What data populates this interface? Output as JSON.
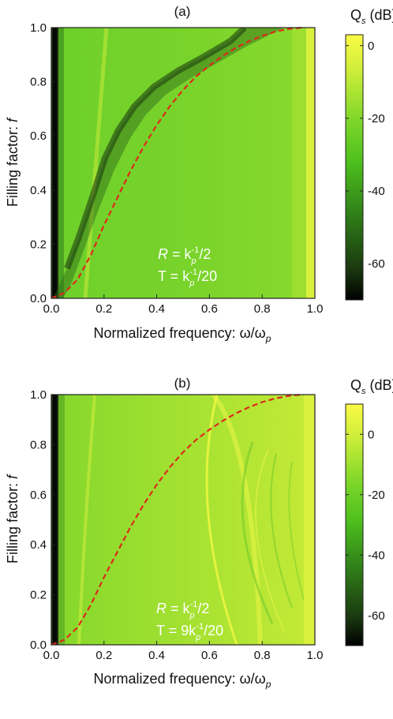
{
  "chart_data": [
    {
      "type": "heatmap",
      "panel_label": "(a)",
      "xlabel": "Normalized frequency: ω/ω",
      "xlabel_sub": "p",
      "ylabel": "Filling factor: ",
      "ylabel_italic": "f",
      "xlim": [
        0,
        1
      ],
      "ylim": [
        0,
        1
      ],
      "xticks": [
        "0.0",
        "0.2",
        "0.4",
        "0.6",
        "0.8",
        "1.0"
      ],
      "yticks": [
        "0.0",
        "0.2",
        "0.4",
        "0.6",
        "0.8",
        "1.0"
      ],
      "colorbar": {
        "label": "Q",
        "label_sub": "s",
        "label_unit": " (dB)",
        "range": [
          -70,
          3
        ],
        "ticks": [
          "0",
          "-20",
          "-40",
          "-60"
        ],
        "tick_values": [
          0,
          -20,
          -40,
          -60
        ]
      },
      "annotation": {
        "line1": {
          "pre": "R",
          "eq": " = k",
          "sub": "p",
          "sup": "-1",
          "post": "/2"
        },
        "line2": {
          "pre": "T",
          "eq": " = ",
          "coef": "",
          "k": "k",
          "sub": "p",
          "sup": "-1",
          "post": "/20"
        }
      },
      "dashed_curve": {
        "color": "#dd2a1a",
        "points": [
          [
            0.0,
            0.0
          ],
          [
            0.05,
            0.02
          ],
          [
            0.1,
            0.07
          ],
          [
            0.15,
            0.16
          ],
          [
            0.2,
            0.27
          ],
          [
            0.25,
            0.37
          ],
          [
            0.3,
            0.47
          ],
          [
            0.35,
            0.56
          ],
          [
            0.4,
            0.64
          ],
          [
            0.45,
            0.71
          ],
          [
            0.5,
            0.77
          ],
          [
            0.55,
            0.82
          ],
          [
            0.6,
            0.86
          ],
          [
            0.65,
            0.895
          ],
          [
            0.7,
            0.925
          ],
          [
            0.75,
            0.95
          ],
          [
            0.8,
            0.97
          ],
          [
            0.85,
            0.985
          ],
          [
            0.9,
            0.995
          ],
          [
            0.95,
            1.0
          ]
        ]
      }
    },
    {
      "type": "heatmap",
      "panel_label": "(b)",
      "xlabel": "Normalized frequency: ω/ω",
      "xlabel_sub": "p",
      "ylabel": "Filling factor: ",
      "ylabel_italic": "f",
      "xlim": [
        0,
        1
      ],
      "ylim": [
        0,
        1
      ],
      "xticks": [
        "0.0",
        "0.2",
        "0.4",
        "0.6",
        "0.8",
        "1.0"
      ],
      "yticks": [
        "0.0",
        "0.2",
        "0.4",
        "0.6",
        "0.8",
        "1.0"
      ],
      "colorbar": {
        "label": "Q",
        "label_sub": "s",
        "label_unit": " (dB)",
        "range": [
          -70,
          10
        ],
        "ticks": [
          "0",
          "-20",
          "-40",
          "-60"
        ],
        "tick_values": [
          0,
          -20,
          -40,
          -60
        ]
      },
      "annotation": {
        "line1": {
          "pre": "R",
          "eq": " = k",
          "sub": "p",
          "sup": "-1",
          "post": "/2"
        },
        "line2": {
          "pre": "T",
          "eq": " = ",
          "coef": "9",
          "k": "k",
          "sub": "p",
          "sup": "-1",
          "post": "/20"
        }
      },
      "dashed_curve": {
        "color": "#dd2a1a",
        "points": [
          [
            0.0,
            0.0
          ],
          [
            0.05,
            0.02
          ],
          [
            0.1,
            0.07
          ],
          [
            0.15,
            0.16
          ],
          [
            0.2,
            0.27
          ],
          [
            0.25,
            0.37
          ],
          [
            0.3,
            0.47
          ],
          [
            0.35,
            0.56
          ],
          [
            0.4,
            0.64
          ],
          [
            0.45,
            0.71
          ],
          [
            0.5,
            0.77
          ],
          [
            0.55,
            0.82
          ],
          [
            0.6,
            0.86
          ],
          [
            0.65,
            0.895
          ],
          [
            0.7,
            0.925
          ],
          [
            0.75,
            0.95
          ],
          [
            0.8,
            0.97
          ],
          [
            0.85,
            0.985
          ],
          [
            0.9,
            0.995
          ],
          [
            0.95,
            1.0
          ]
        ]
      }
    }
  ],
  "colors": {
    "colormap": [
      "#000000",
      "#1b3a10",
      "#2f7e18",
      "#4ec01e",
      "#7fd72a",
      "#c8ec38",
      "#fbfb45"
    ],
    "curve": "#dd2a1a"
  }
}
